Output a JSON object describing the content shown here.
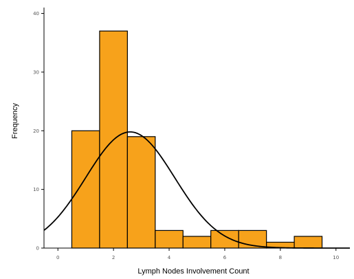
{
  "chart_data": {
    "type": "bar",
    "subtype": "histogram",
    "xlabel": "Lymph Nodes Involvement Count",
    "ylabel": "Frequency",
    "xlim": [
      -0.5,
      10.5
    ],
    "ylim": [
      0,
      41
    ],
    "x_ticks": [
      0,
      2,
      4,
      6,
      8,
      10
    ],
    "y_ticks": [
      0,
      10,
      20,
      30,
      40
    ],
    "bin_width": 1,
    "bins": [
      {
        "start": 0.5,
        "end": 1.5,
        "value": 20
      },
      {
        "start": 1.5,
        "end": 2.5,
        "value": 37
      },
      {
        "start": 2.5,
        "end": 3.5,
        "value": 19
      },
      {
        "start": 3.5,
        "end": 4.5,
        "value": 3
      },
      {
        "start": 4.5,
        "end": 5.5,
        "value": 2
      },
      {
        "start": 5.5,
        "end": 6.5,
        "value": 3
      },
      {
        "start": 6.5,
        "end": 7.5,
        "value": 3
      },
      {
        "start": 7.5,
        "end": 8.5,
        "value": 1
      },
      {
        "start": 8.5,
        "end": 9.5,
        "value": 2
      }
    ],
    "normal_curve": {
      "mean": 2.6,
      "sd": 1.6,
      "peak": 19.8
    },
    "grid": false,
    "bar_color": "#F7A21B",
    "curve_color": "#000000"
  }
}
